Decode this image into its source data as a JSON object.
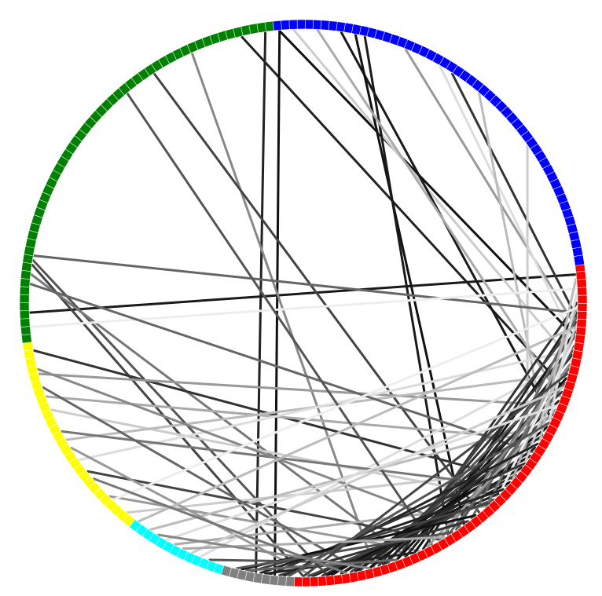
{
  "diagram": {
    "type": "circular-chord-graph",
    "background": "#ffffff",
    "ring": {
      "node_count": 220,
      "segments": [
        {
          "group": "red",
          "color": "#ff0000",
          "start_deg": -8,
          "end_deg": 92
        },
        {
          "group": "gray",
          "color": "#808080",
          "start_deg": 92,
          "end_deg": 107
        },
        {
          "group": "cyan",
          "color": "#00ffff",
          "start_deg": 107,
          "end_deg": 128
        },
        {
          "group": "yellow",
          "color": "#ffff00",
          "start_deg": 128,
          "end_deg": 172
        },
        {
          "group": "green",
          "color": "#008000",
          "start_deg": 172,
          "end_deg": 264
        },
        {
          "group": "blue",
          "color": "#0000ff",
          "start_deg": 264,
          "end_deg": 352
        }
      ]
    },
    "edges": [
      {
        "from_deg": -6,
        "to_deg": 178,
        "shade": "#1a1a1a"
      },
      {
        "from_deg": 7,
        "to_deg": 265,
        "shade": "#111111"
      },
      {
        "from_deg": 12,
        "to_deg": 268,
        "shade": "#cccccc"
      },
      {
        "from_deg": 18,
        "to_deg": 257,
        "shade": "#222222"
      },
      {
        "from_deg": 25,
        "to_deg": 278,
        "shade": "#1a1a1a"
      },
      {
        "from_deg": 54,
        "to_deg": 281,
        "shade": "#111111"
      },
      {
        "from_deg": 58,
        "to_deg": 283,
        "shade": "#1a1a1a"
      },
      {
        "from_deg": 96,
        "to_deg": 265,
        "shade": "#111111"
      },
      {
        "from_deg": 100,
        "to_deg": 262,
        "shade": "#222222"
      },
      {
        "from_deg": 75,
        "to_deg": 246,
        "shade": "#888888"
      },
      {
        "from_deg": 20,
        "to_deg": 273,
        "shade": "#aaaaaa"
      },
      {
        "from_deg": 3,
        "to_deg": 303,
        "shade": "#333333"
      },
      {
        "from_deg": 5,
        "to_deg": 292,
        "shade": "#999999"
      },
      {
        "from_deg": 8,
        "to_deg": 300,
        "shade": "#dddddd"
      },
      {
        "from_deg": 28,
        "to_deg": 310,
        "shade": "#bbbbbb"
      },
      {
        "from_deg": 35,
        "to_deg": 325,
        "shade": "#cccccc"
      },
      {
        "from_deg": 50,
        "to_deg": 237,
        "shade": "#444444"
      },
      {
        "from_deg": 2,
        "to_deg": 190,
        "shade": "#666666"
      },
      {
        "from_deg": 85,
        "to_deg": 189,
        "shade": "#555555"
      },
      {
        "from_deg": 90,
        "to_deg": 188,
        "shade": "#444444"
      },
      {
        "from_deg": 68,
        "to_deg": 186,
        "shade": "#777777"
      },
      {
        "from_deg": 40,
        "to_deg": 170,
        "shade": "#333333"
      },
      {
        "from_deg": 22,
        "to_deg": 165,
        "shade": "#999999"
      },
      {
        "from_deg": 30,
        "to_deg": 160,
        "shade": "#aaaaaa"
      },
      {
        "from_deg": 45,
        "to_deg": 157,
        "shade": "#cccccc"
      },
      {
        "from_deg": 15,
        "to_deg": 150,
        "shade": "#bbbbbb"
      },
      {
        "from_deg": 10,
        "to_deg": 145,
        "shade": "#dddddd"
      },
      {
        "from_deg": 60,
        "to_deg": 142,
        "shade": "#444444"
      },
      {
        "from_deg": 65,
        "to_deg": 135,
        "shade": "#999999"
      },
      {
        "from_deg": 38,
        "to_deg": 130,
        "shade": "#cccccc"
      },
      {
        "from_deg": 26,
        "to_deg": 124,
        "shade": "#bbbbbb"
      },
      {
        "from_deg": 48,
        "to_deg": 118,
        "shade": "#aaaaaa"
      },
      {
        "from_deg": 12,
        "to_deg": 112,
        "shade": "#dddddd"
      },
      {
        "from_deg": 72,
        "to_deg": 110,
        "shade": "#555555"
      },
      {
        "from_deg": -3,
        "to_deg": 175,
        "shade": "#eeeeee"
      },
      {
        "from_deg": 33,
        "to_deg": 184,
        "shade": "#666666"
      },
      {
        "from_deg": 42,
        "to_deg": 152,
        "shade": "#777777"
      },
      {
        "from_deg": 55,
        "to_deg": 166,
        "shade": "#888888"
      },
      {
        "from_deg": 78,
        "to_deg": 162,
        "shade": "#666666"
      },
      {
        "from_deg": 88,
        "to_deg": 148,
        "shade": "#999999"
      },
      {
        "from_deg": 62,
        "to_deg": 230,
        "shade": "#555555"
      },
      {
        "from_deg": 0,
        "to_deg": 70,
        "shade": "#333333"
      },
      {
        "from_deg": 2,
        "to_deg": 64,
        "shade": "#222222"
      },
      {
        "from_deg": 4,
        "to_deg": 72,
        "shade": "#444444"
      },
      {
        "from_deg": 6,
        "to_deg": 66,
        "shade": "#111111"
      },
      {
        "from_deg": 9,
        "to_deg": 74,
        "shade": "#333333"
      },
      {
        "from_deg": 11,
        "to_deg": 68,
        "shade": "#222222"
      },
      {
        "from_deg": 14,
        "to_deg": 76,
        "shade": "#555555"
      },
      {
        "from_deg": 16,
        "to_deg": 70,
        "shade": "#111111"
      },
      {
        "from_deg": 19,
        "to_deg": 78,
        "shade": "#333333"
      },
      {
        "from_deg": 21,
        "to_deg": 73,
        "shade": "#222222"
      },
      {
        "from_deg": 24,
        "to_deg": 80,
        "shade": "#444444"
      },
      {
        "from_deg": 27,
        "to_deg": 76,
        "shade": "#111111"
      },
      {
        "from_deg": 29,
        "to_deg": 82,
        "shade": "#333333"
      },
      {
        "from_deg": 32,
        "to_deg": 79,
        "shade": "#222222"
      },
      {
        "from_deg": 34,
        "to_deg": 84,
        "shade": "#111111"
      },
      {
        "from_deg": 37,
        "to_deg": 82,
        "shade": "#222222"
      },
      {
        "from_deg": 39,
        "to_deg": 86,
        "shade": "#333333"
      },
      {
        "from_deg": 41,
        "to_deg": 85,
        "shade": "#111111"
      },
      {
        "from_deg": 44,
        "to_deg": 88,
        "shade": "#222222"
      },
      {
        "from_deg": 46,
        "to_deg": 89,
        "shade": "#444444"
      },
      {
        "from_deg": 3,
        "to_deg": 52,
        "shade": "#666666"
      },
      {
        "from_deg": 7,
        "to_deg": 48,
        "shade": "#777777"
      },
      {
        "from_deg": 10,
        "to_deg": 56,
        "shade": "#555555"
      },
      {
        "from_deg": 13,
        "to_deg": 60,
        "shade": "#888888"
      },
      {
        "from_deg": 17,
        "to_deg": 58,
        "shade": "#666666"
      },
      {
        "from_deg": 23,
        "to_deg": 63,
        "shade": "#999999"
      },
      {
        "from_deg": 1,
        "to_deg": 40,
        "shade": "#aaaaaa"
      },
      {
        "from_deg": 5,
        "to_deg": 36,
        "shade": "#cccccc"
      },
      {
        "from_deg": 8,
        "to_deg": 44,
        "shade": "#eeeeee"
      },
      {
        "from_deg": 31,
        "to_deg": 94,
        "shade": "#222222"
      },
      {
        "from_deg": 36,
        "to_deg": 97,
        "shade": "#333333"
      },
      {
        "from_deg": 43,
        "to_deg": 99,
        "shade": "#222222"
      },
      {
        "from_deg": 47,
        "to_deg": 101,
        "shade": "#444444"
      },
      {
        "from_deg": 51,
        "to_deg": 103,
        "shade": "#111111"
      },
      {
        "from_deg": 53,
        "to_deg": 95,
        "shade": "#333333"
      },
      {
        "from_deg": 57,
        "to_deg": 104,
        "shade": "#555555"
      },
      {
        "from_deg": 66,
        "to_deg": 98,
        "shade": "#222222"
      },
      {
        "from_deg": 70,
        "to_deg": 102,
        "shade": "#666666"
      },
      {
        "from_deg": -5,
        "to_deg": 30,
        "shade": "#bbbbbb"
      },
      {
        "from_deg": -2,
        "to_deg": 26,
        "shade": "#dddddd"
      },
      {
        "from_deg": 15,
        "to_deg": 90,
        "shade": "#444444"
      },
      {
        "from_deg": 26,
        "to_deg": 93,
        "shade": "#555555"
      },
      {
        "from_deg": 18,
        "to_deg": 114,
        "shade": "#cccccc"
      },
      {
        "from_deg": 22,
        "to_deg": 120,
        "shade": "#dddddd"
      },
      {
        "from_deg": 5,
        "to_deg": 127,
        "shade": "#bbbbbb"
      },
      {
        "from_deg": 1,
        "to_deg": 134,
        "shade": "#eeeeee"
      },
      {
        "from_deg": 59,
        "to_deg": 116,
        "shade": "#aaaaaa"
      },
      {
        "from_deg": 76,
        "to_deg": 122,
        "shade": "#888888"
      },
      {
        "from_deg": 81,
        "to_deg": 140,
        "shade": "#777777"
      }
    ]
  }
}
